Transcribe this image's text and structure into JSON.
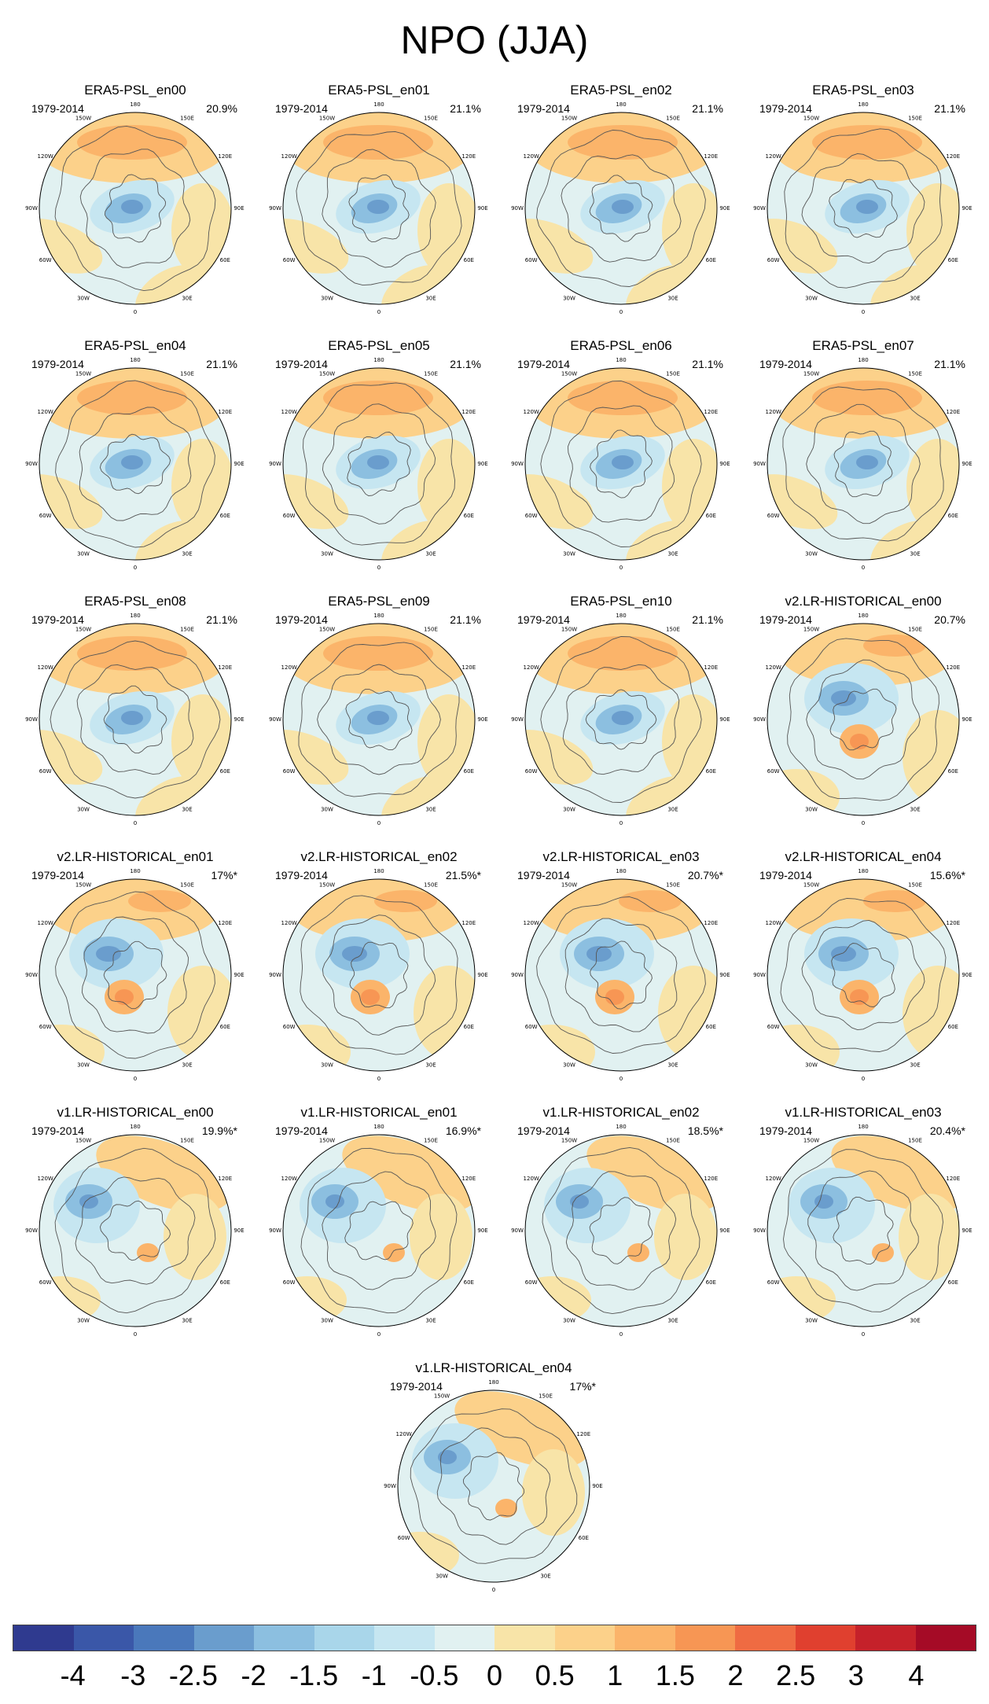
{
  "chart_data": {
    "type": "heatmap",
    "title": "NPO (JJA)",
    "projection": "north polar stereographic",
    "longitude_labels": [
      "180",
      "150E",
      "120E",
      "90E",
      "60E",
      "30E",
      "0",
      "30W",
      "60W",
      "90W",
      "120W",
      "150W"
    ],
    "colorbar": {
      "ticks": [
        "-4",
        "-3",
        "-2.5",
        "-2",
        "-1.5",
        "-1",
        "-0.5",
        "0",
        "0.5",
        "1",
        "1.5",
        "2",
        "2.5",
        "3",
        "4"
      ],
      "colors": [
        "#2f3a8f",
        "#3a57a8",
        "#4a78bb",
        "#6a9dcd",
        "#8cbfe0",
        "#a9d6ea",
        "#c6e6f1",
        "#e1f1f1",
        "#f8e4a8",
        "#fcd18a",
        "#fbb46a",
        "#f79654",
        "#ef6b42",
        "#e0402f",
        "#c5212a",
        "#a50b26"
      ]
    },
    "panels": [
      {
        "name": "ERA5-PSL_en00",
        "period": "1979-2014",
        "pct": "20.9%"
      },
      {
        "name": "ERA5-PSL_en01",
        "period": "1979-2014",
        "pct": "21.1%"
      },
      {
        "name": "ERA5-PSL_en02",
        "period": "1979-2014",
        "pct": "21.1%"
      },
      {
        "name": "ERA5-PSL_en03",
        "period": "1979-2014",
        "pct": "21.1%"
      },
      {
        "name": "ERA5-PSL_en04",
        "period": "1979-2014",
        "pct": "21.1%"
      },
      {
        "name": "ERA5-PSL_en05",
        "period": "1979-2014",
        "pct": "21.1%"
      },
      {
        "name": "ERA5-PSL_en06",
        "period": "1979-2014",
        "pct": "21.1%"
      },
      {
        "name": "ERA5-PSL_en07",
        "period": "1979-2014",
        "pct": "21.1%"
      },
      {
        "name": "ERA5-PSL_en08",
        "period": "1979-2014",
        "pct": "21.1%"
      },
      {
        "name": "ERA5-PSL_en09",
        "period": "1979-2014",
        "pct": "21.1%"
      },
      {
        "name": "ERA5-PSL_en10",
        "period": "1979-2014",
        "pct": "21.1%"
      },
      {
        "name": "v2.LR-HISTORICAL_en00",
        "period": "1979-2014",
        "pct": "20.7%"
      },
      {
        "name": "v2.LR-HISTORICAL_en01",
        "period": "1979-2014",
        "pct": "17%*"
      },
      {
        "name": "v2.LR-HISTORICAL_en02",
        "period": "1979-2014",
        "pct": "21.5%*"
      },
      {
        "name": "v2.LR-HISTORICAL_en03",
        "period": "1979-2014",
        "pct": "20.7%*"
      },
      {
        "name": "v2.LR-HISTORICAL_en04",
        "period": "1979-2014",
        "pct": "15.6%*"
      },
      {
        "name": "v1.LR-HISTORICAL_en00",
        "period": "1979-2014",
        "pct": "19.9%*"
      },
      {
        "name": "v1.LR-HISTORICAL_en01",
        "period": "1979-2014",
        "pct": "16.9%*"
      },
      {
        "name": "v1.LR-HISTORICAL_en02",
        "period": "1979-2014",
        "pct": "18.5%*"
      },
      {
        "name": "v1.LR-HISTORICAL_en03",
        "period": "1979-2014",
        "pct": "20.4%*"
      },
      {
        "name": "v1.LR-HISTORICAL_en04",
        "period": "1979-2014",
        "pct": "17%*"
      }
    ]
  }
}
